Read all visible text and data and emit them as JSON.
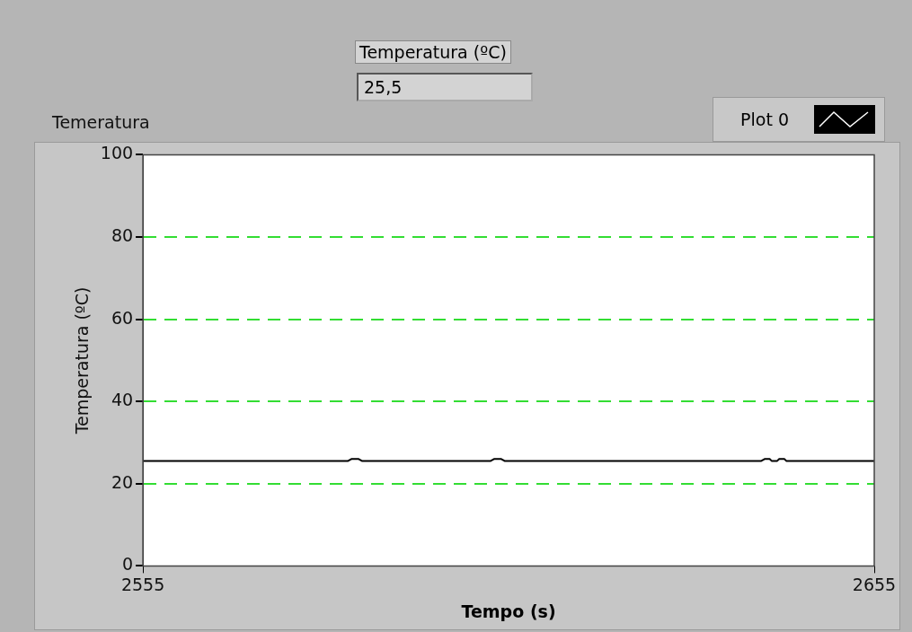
{
  "chart_data": {
    "type": "line",
    "title": "Temeratura",
    "xlabel": "Tempo (s)",
    "ylabel": "Temperatura (ºC)",
    "annotations": [
      "Temperatura (ºC)",
      "25,5"
    ],
    "series": [
      {
        "name": "Plot 0",
        "color": "#000000",
        "x": [
          2555,
          2583,
          2583.5,
          2584.5,
          2585,
          2602.5,
          2603,
          2604,
          2604.5,
          2639.5,
          2640,
          2640.7,
          2641,
          2641.7,
          2642,
          2642.7,
          2643,
          2655
        ],
        "values": [
          25.5,
          25.5,
          26,
          26,
          25.5,
          25.5,
          26,
          26,
          25.5,
          25.5,
          26,
          26,
          25.5,
          25.5,
          26,
          26,
          25.5,
          25.5
        ]
      }
    ],
    "xlim": [
      2555,
      2655
    ],
    "xticks": [
      2555,
      2655
    ],
    "ylim": [
      0,
      100
    ],
    "yticks": [
      0,
      20,
      40,
      60,
      80,
      100
    ],
    "grid": "y",
    "legend": "top right",
    "marker": "none",
    "line_style": "solid"
  }
}
